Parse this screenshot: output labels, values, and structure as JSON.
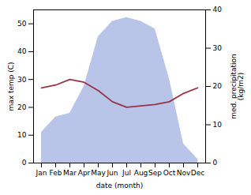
{
  "chart_data": {
    "type": "line",
    "categories": [
      "Jan",
      "Feb",
      "Mar",
      "Apr",
      "May",
      "Jun",
      "Jul",
      "Aug",
      "Sep",
      "Oct",
      "Nov",
      "Dec"
    ],
    "xlabel": "date (month)",
    "ylabel": "max temp (C)",
    "y2label": "med. precipitation\n(kg/m2)",
    "ylim": [
      0,
      55
    ],
    "yticks": [
      0,
      10,
      20,
      30,
      40,
      50
    ],
    "y2lim": [
      0,
      40
    ],
    "y2ticks": [
      0,
      10,
      20,
      30,
      40
    ],
    "grid": false,
    "series": [
      {
        "type": "area",
        "axis": "y2",
        "color": "#b8c4e8",
        "values": [
          8,
          12,
          13,
          20,
          33,
          37,
          38,
          37,
          35,
          22,
          5,
          1
        ]
      },
      {
        "type": "line",
        "color": "#993344",
        "values": [
          27,
          28,
          30,
          29,
          26,
          22,
          20,
          20.5,
          21,
          22,
          25,
          27
        ]
      }
    ]
  }
}
